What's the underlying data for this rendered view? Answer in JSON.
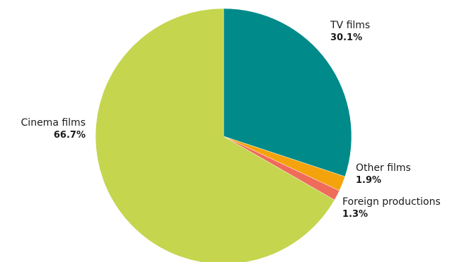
{
  "chart_data": {
    "type": "pie",
    "title": "",
    "slices": [
      {
        "label": "TV films",
        "value_label": "30.1%",
        "value": 30.1,
        "color": "#008a89"
      },
      {
        "label": "Other films",
        "value_label": "1.9%",
        "value": 1.9,
        "color": "#f4a30c"
      },
      {
        "label": "Foreign productions",
        "value_label": "1.3%",
        "value": 1.3,
        "color": "#ef6b5a"
      },
      {
        "label": "Cinema films",
        "value_label": "66.7%",
        "value": 66.7,
        "color": "#c5d54e"
      }
    ]
  }
}
